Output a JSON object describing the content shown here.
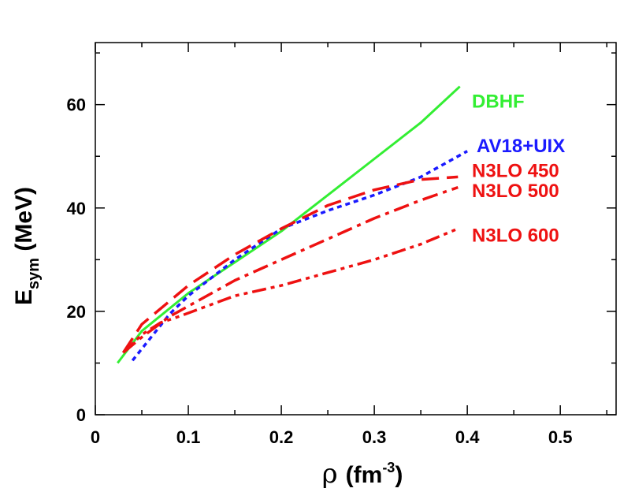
{
  "chart_data": {
    "type": "line",
    "xlabel": {
      "symbol": "ρ",
      "unit": "(fm",
      "exp": "-3",
      "close": ")"
    },
    "ylabel": {
      "main": "E",
      "sub": "sym",
      "unit": " (MeV)"
    },
    "xlim": [
      0,
      0.56
    ],
    "ylim": [
      0,
      72
    ],
    "x_ticks": [
      0,
      0.1,
      0.2,
      0.3,
      0.4,
      0.5
    ],
    "x_tick_labels": [
      "0",
      "0.1",
      "0.2",
      "0.3",
      "0.4",
      "0.5"
    ],
    "y_ticks": [
      0,
      20,
      40,
      60
    ],
    "y_tick_labels": [
      "0",
      "20",
      "40",
      "60"
    ],
    "series": [
      {
        "name": "DBHF",
        "color": "#33ee33",
        "style": "solid",
        "x": [
          0.024,
          0.05,
          0.1,
          0.15,
          0.2,
          0.25,
          0.3,
          0.35,
          0.392
        ],
        "y": [
          10,
          16.2,
          23.5,
          29.5,
          35.5,
          42.5,
          49.5,
          56.5,
          63.5
        ]
      },
      {
        "name": "AV18+UIX",
        "color": "#1a1aff",
        "style": "dotted",
        "x": [
          0.04,
          0.06,
          0.08,
          0.1,
          0.15,
          0.2,
          0.25,
          0.3,
          0.35,
          0.4
        ],
        "y": [
          10.5,
          15,
          19.5,
          23,
          30,
          36,
          39.5,
          42.5,
          46,
          51
        ]
      },
      {
        "name": "N3LO 450",
        "color": "#ee1111",
        "style": "dashed",
        "x": [
          0.03,
          0.05,
          0.1,
          0.15,
          0.2,
          0.25,
          0.3,
          0.35,
          0.39
        ],
        "y": [
          12,
          17.5,
          25,
          31,
          36,
          40.5,
          43.5,
          45.5,
          46
        ]
      },
      {
        "name": "N3LO 500",
        "color": "#ee1111",
        "style": "dashdot",
        "x": [
          0.03,
          0.05,
          0.08,
          0.1,
          0.15,
          0.2,
          0.25,
          0.3,
          0.35,
          0.39
        ],
        "y": [
          12,
          15,
          19,
          21,
          26,
          30,
          34,
          38,
          41.5,
          44
        ]
      },
      {
        "name": "N3LO 600",
        "color": "#ee1111",
        "style": "dashdotdot",
        "x": [
          0.03,
          0.05,
          0.07,
          0.09,
          0.12,
          0.15,
          0.2,
          0.25,
          0.3,
          0.35,
          0.39
        ],
        "y": [
          12,
          15.5,
          17.8,
          19,
          21,
          23,
          25,
          27.5,
          30,
          33,
          36
        ]
      }
    ],
    "labels": [
      {
        "text": "DBHF",
        "series": "DBHF",
        "x": 0.405,
        "y": 59.4
      },
      {
        "text": "AV18+UIX",
        "series": "AV18+UIX",
        "x": 0.41,
        "y": 50.8
      },
      {
        "text": "N3LO 450",
        "series": "N3LO 450",
        "x": 0.405,
        "y": 46.0
      },
      {
        "text": "N3LO 500",
        "series": "N3LO 500",
        "x": 0.405,
        "y": 42.1
      },
      {
        "text": "N3LO 600",
        "series": "N3LO 600",
        "x": 0.405,
        "y": 33.5
      }
    ]
  }
}
